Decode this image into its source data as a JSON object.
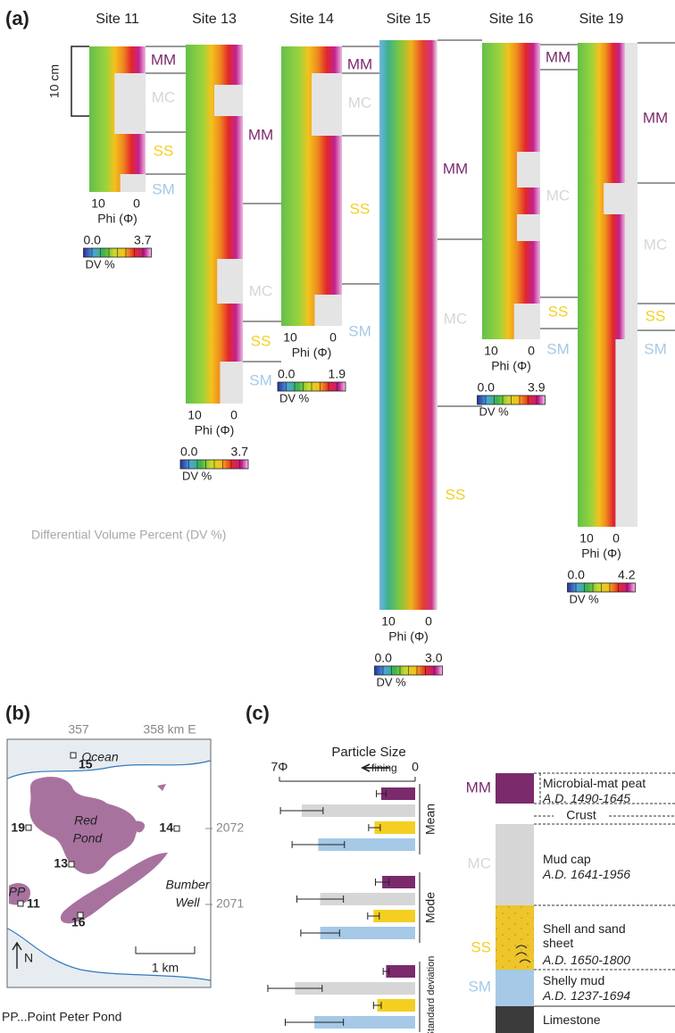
{
  "panel_a": {
    "label": "(a)",
    "scale": "10 cm",
    "caption": "Differential Volume Percent (DV %)",
    "sites": [
      {
        "name": "Site 11",
        "units": [
          "MM",
          "MC",
          "SS",
          "SM"
        ],
        "phi_ticks": [
          "10",
          "0"
        ],
        "phi_label": "Phi (Φ)",
        "colorbar": {
          "min": "0.0",
          "max": "3.7",
          "unit": "DV %"
        }
      },
      {
        "name": "Site 13",
        "units": [
          "MM",
          "MC",
          "SS",
          "SM"
        ],
        "phi_ticks": [
          "10",
          "0"
        ],
        "phi_label": "Phi (Φ)",
        "colorbar": {
          "min": "0.0",
          "max": "3.7",
          "unit": "DV %"
        }
      },
      {
        "name": "Site 14",
        "units": [
          "MM",
          "MC",
          "SS",
          "SM"
        ],
        "phi_ticks": [
          "10",
          "0"
        ],
        "phi_label": "Phi (Φ)",
        "colorbar": {
          "min": "0.0",
          "max": "1.9",
          "unit": "DV %"
        }
      },
      {
        "name": "Site 15",
        "units": [
          "MM",
          "MC",
          "SS"
        ],
        "phi_ticks": [
          "10",
          "0"
        ],
        "phi_label": "Phi (Φ)",
        "colorbar": {
          "min": "0.0",
          "max": "3.0",
          "unit": "DV %"
        }
      },
      {
        "name": "Site 16",
        "units": [
          "MM",
          "MC",
          "SS",
          "SM"
        ],
        "phi_ticks": [
          "10",
          "0"
        ],
        "phi_label": "Phi (Φ)",
        "colorbar": {
          "min": "0.0",
          "max": "3.9",
          "unit": "DV %"
        }
      },
      {
        "name": "Site 19",
        "units": [
          "MM",
          "MC",
          "SS",
          "SM"
        ],
        "phi_ticks": [
          "10",
          "0"
        ],
        "phi_label": "Phi (Φ)",
        "colorbar": {
          "min": "0.0",
          "max": "4.2",
          "unit": "DV %"
        }
      }
    ]
  },
  "panel_b": {
    "label": "(b)",
    "easting": [
      "357",
      "358 km E"
    ],
    "northing": [
      "2072",
      "2071"
    ],
    "places": [
      "Ocean",
      "Red",
      "Pond",
      "Bumber",
      "Well",
      "PP"
    ],
    "sites": [
      "15",
      "19",
      "14",
      "13",
      "11",
      "16"
    ],
    "scale": "1 km",
    "north": "N",
    "caption": "PP...Point Peter Pond"
  },
  "panel_c": {
    "label": "(c)",
    "units": [
      {
        "title": "Microbial-mat peat",
        "date": "A.D. 1490-1645"
      },
      {
        "title": "Mud cap",
        "date": "A.D. 1641-1956"
      },
      {
        "title": "Shell and sand sheet",
        "date": "A.D. 1650-1800"
      },
      {
        "title": "Shelly mud",
        "date": "A.D. 1237-1694"
      }
    ],
    "crust": "Crust",
    "limestone": "Limestone"
  },
  "chart_data": {
    "type": "bar",
    "orientation": "horizontal",
    "title": "Particle Size",
    "annotation": "fining",
    "categories": [
      "Mean",
      "Mode",
      "Standard deviation"
    ],
    "xlim": [
      7,
      0
    ],
    "xticks": [
      {
        "value": 7,
        "label": "7Φ"
      },
      0
    ],
    "series": [
      {
        "name": "MM",
        "color": "#7b2a6c",
        "values": [
          1.75,
          1.7,
          1.5
        ],
        "errors": [
          0.25,
          0.35,
          0.15
        ]
      },
      {
        "name": "MC",
        "color": "#d6d6d6",
        "values": [
          5.85,
          4.9,
          6.2
        ],
        "errors": [
          1.1,
          1.2,
          1.4
        ]
      },
      {
        "name": "SS",
        "color": "#f4cf22",
        "values": [
          2.1,
          2.15,
          1.95
        ],
        "errors": [
          0.3,
          0.3,
          0.2
        ]
      },
      {
        "name": "SM",
        "color": "#a5c9e6",
        "values": [
          5.0,
          4.9,
          5.2
        ],
        "errors": [
          1.35,
          1.0,
          1.5
        ]
      }
    ]
  }
}
